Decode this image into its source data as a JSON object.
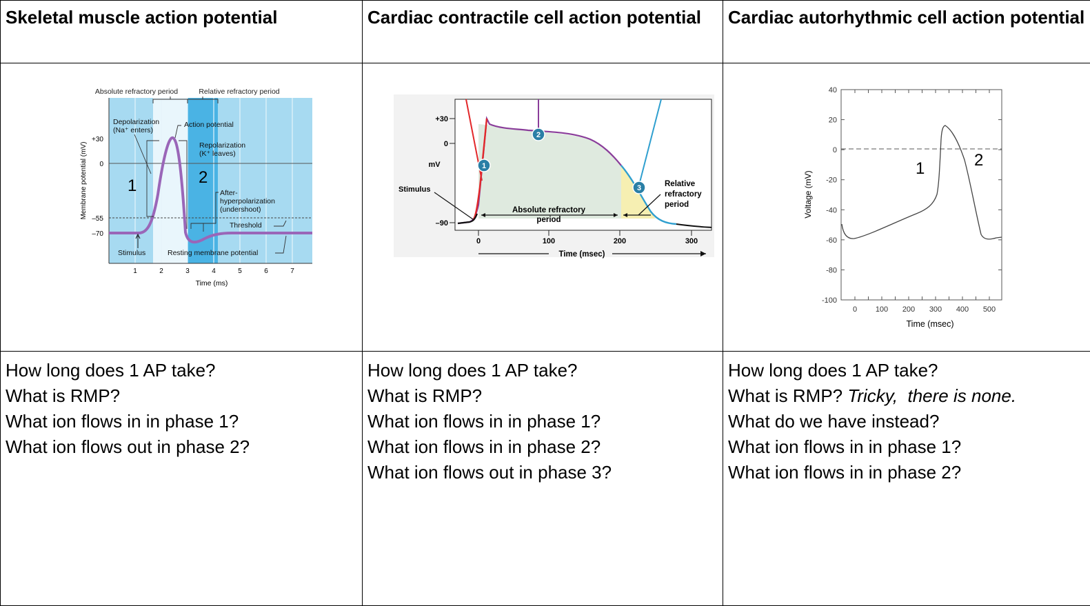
{
  "headers": [
    "Skeletal muscle action potential",
    "Cardiac contractile cell action potential",
    "Cardiac autorhythmic cell action potential"
  ],
  "skeletal_figure": {
    "top_label_absolute": "Absolute refractory period",
    "top_label_relative": "Relative refractory period",
    "depolarization": "Depolarization",
    "na_enters": "(Na⁺ enters)",
    "action_potential": "Action potential",
    "repolarization": "Repolarization",
    "k_leaves": "(K⁺ leaves)",
    "after": "After-",
    "hyper": "hyperpolarization",
    "undershoot": "(undershoot)",
    "threshold": "Threshold",
    "stimulus": "Stimulus",
    "resting": "Resting membrane potential",
    "ylabel": "Membrane potential (mV)",
    "xlabel": "Time (ms)",
    "yticks": [
      "+30",
      "0",
      "–55",
      "–70"
    ],
    "xticks": [
      "1",
      "2",
      "3",
      "4",
      "5",
      "6",
      "7"
    ],
    "phase1": "1",
    "phase2": "2",
    "colors": {
      "bg": "#a7daf1",
      "dark": "#4ab3e4",
      "light": "#e9f6fc",
      "trace": "#9a66b8"
    }
  },
  "cardiac_contractile_figure": {
    "yticks": [
      "+30",
      "0",
      "–90"
    ],
    "ylabel": "mV",
    "stimulus": "Stimulus",
    "absolute_1": "Absolute refractory",
    "absolute_2": "period",
    "relative_1": "Relative",
    "relative_2": "refractory",
    "relative_3": "period",
    "xticks": [
      "0",
      "100",
      "200",
      "300"
    ],
    "xlabel": "Time (msec)",
    "badges": [
      "1",
      "2",
      "3"
    ],
    "colors": {
      "red": "#e2282a",
      "purple": "#8a3d9a",
      "blue": "#2f9fcf",
      "green": "#dfeadf",
      "yellow": "#f6efb2",
      "badge": "#2a7fa6"
    }
  },
  "cardiac_autorhythmic_figure": {
    "yticks": [
      "40",
      "20",
      "0",
      "-20",
      "-40",
      "-60",
      "-80",
      "-100"
    ],
    "xticks": [
      "0",
      "100",
      "200",
      "300",
      "400",
      "500"
    ],
    "ylabel": "Voltage (mV)",
    "xlabel": "Time (msec)",
    "phase1": "1",
    "phase2": "2"
  },
  "questions": {
    "skeletal": [
      "How long does 1 AP take?",
      "What is RMP?",
      "What ion flows in in phase 1?",
      "What ion flows out in phase 2?"
    ],
    "contractile": [
      "How long does 1 AP take?",
      "What is RMP?",
      "What ion flows in in phase 1?",
      "What ion flows in in phase 2?",
      "What ion flows out in phase 3?"
    ],
    "autorhythmic": {
      "line1": "How long does 1 AP take?",
      "line2_normal": "What is RMP? ",
      "line2_italic": "Tricky,  there is none.",
      "line3": "What do we have instead?",
      "line4": "What ion flows in in phase 1?",
      "line5": "What ion flows in in phase 2?"
    }
  }
}
